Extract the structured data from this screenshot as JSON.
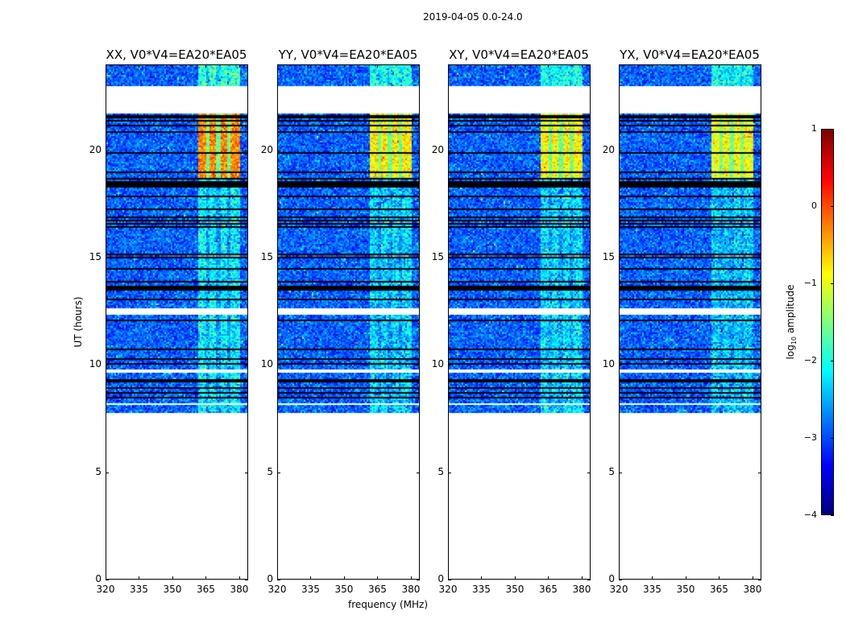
{
  "suptitle": "2019-04-05 0.0-24.0",
  "xlabel": "frequency (MHz)",
  "ylabel": "UT (hours)",
  "colorbar": {
    "label_main": "log",
    "label_sub": "10",
    "label_rest": " amplitude",
    "ticks": [
      "1",
      "0",
      "−1",
      "−2",
      "−3",
      "−4"
    ],
    "tick_values": [
      1,
      0,
      -1,
      -2,
      -3,
      -4
    ],
    "range": [
      -4,
      1
    ],
    "colormap": "jet"
  },
  "chart_data": {
    "type": "heatmap",
    "panels": [
      {
        "title": "XX, V0*V4=EA20*EA05",
        "band_level_evening": -0.3,
        "band_level_day": -2.2
      },
      {
        "title": "YY, V0*V4=EA20*EA05",
        "band_level_evening": -0.8,
        "band_level_day": -2.3
      },
      {
        "title": "XY, V0*V4=EA20*EA05",
        "band_level_evening": -0.8,
        "band_level_day": -2.3
      },
      {
        "title": "YX, V0*V4=EA20*EA05",
        "band_level_evening": -0.9,
        "band_level_day": -2.4
      }
    ],
    "x_ticks": [
      "320",
      "335",
      "350",
      "365",
      "380"
    ],
    "x_tick_values": [
      320,
      335,
      350,
      365,
      380
    ],
    "xlim": [
      320,
      384
    ],
    "y_ticks": [
      "0",
      "5",
      "10",
      "15",
      "20"
    ],
    "y_tick_values": [
      0,
      5,
      10,
      15,
      20
    ],
    "ylim": [
      0,
      24
    ],
    "data_time_range": [
      7.8,
      24
    ],
    "background_log_amplitude": -2.9,
    "rfi_band_mhz": [
      361,
      380
    ],
    "evening_bright_hours": [
      18.7,
      21.8
    ],
    "flagged_gaps_hours": [
      [
        21.75,
        23.05
      ],
      [
        12.37,
        12.67
      ],
      [
        9.65,
        9.8
      ]
    ]
  }
}
